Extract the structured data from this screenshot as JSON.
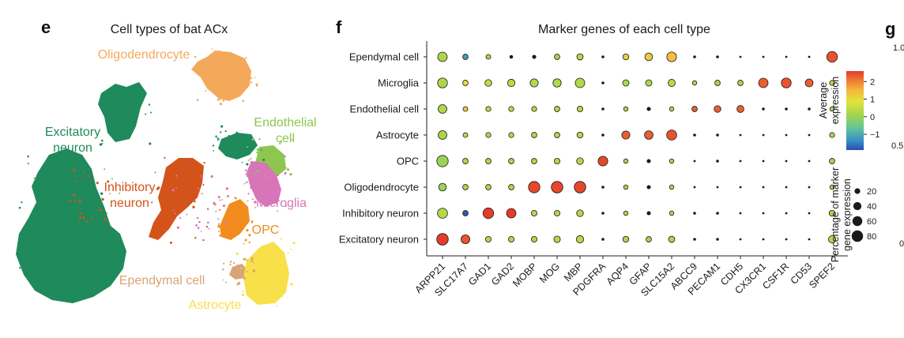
{
  "panels": {
    "e": {
      "letter": "e",
      "title": "Cell types of bat ACx",
      "clusters": [
        {
          "label": "Oligodendrocyte",
          "color": "#f4a95a"
        },
        {
          "label": "Excitatory neuron",
          "color": "#1f8a5b"
        },
        {
          "label": "Endothelial cell",
          "color": "#8dc74f"
        },
        {
          "label": "Inhibitory neuron",
          "color": "#d4531a"
        },
        {
          "label": "Microglia",
          "color": "#d874b8"
        },
        {
          "label": "OPC",
          "color": "#f28c1e"
        },
        {
          "label": "Ependymal cell",
          "color": "#d8a574"
        },
        {
          "label": "Astrocyte",
          "color": "#f8e04a"
        }
      ]
    },
    "f": {
      "letter": "f"
    },
    "g": {
      "letter": "g",
      "ytick_labels": [
        "1.0",
        "0.5",
        "0"
      ]
    }
  },
  "chart_data": {
    "type": "dotplot",
    "title": "Marker genes of each cell type",
    "rows": [
      "Ependymal cell",
      "Microglia",
      "Endothelial cell",
      "Astrocyte",
      "OPC",
      "Oligodendrocyte",
      "Inhibitory neuron",
      "Excitatory neuron"
    ],
    "columns": [
      "ARPP21",
      "SLC17A7",
      "GAD1",
      "GAD2",
      "MOBP",
      "MOG",
      "MBP",
      "PDGFRA",
      "AQP4",
      "GFAP",
      "SLC15A2",
      "ABCC9",
      "PECAM1",
      "CDH5",
      "CX3CR1",
      "CSF1R",
      "CD53",
      "SPEF2"
    ],
    "avg_expression": [
      [
        0.2,
        -1.2,
        0.2,
        0.2,
        0.2,
        0.2,
        0.3,
        0,
        1.2,
        1.2,
        1.4,
        0,
        0,
        0,
        0,
        0,
        0,
        2.4
      ],
      [
        0.2,
        0.9,
        0.5,
        0.4,
        0.3,
        0.3,
        0.3,
        0,
        0.2,
        0.2,
        0.3,
        0.2,
        0.2,
        0.2,
        2.3,
        2.4,
        2.3,
        0.3
      ],
      [
        0.3,
        1.3,
        0.4,
        0.4,
        0.3,
        0.3,
        0.3,
        0,
        0.2,
        0.2,
        0.3,
        2.3,
        2.3,
        2.3,
        0.2,
        0.2,
        0.2,
        0.2
      ],
      [
        0.2,
        0.4,
        0.3,
        0.3,
        0.3,
        0.3,
        0.3,
        0,
        2.3,
        2.3,
        2.4,
        0.2,
        0.2,
        0.2,
        0.2,
        0.2,
        0.2,
        0.2
      ],
      [
        0,
        0.3,
        0.3,
        0.3,
        0.3,
        0.3,
        0.3,
        2.5,
        0.2,
        0.2,
        0.3,
        0.2,
        0.2,
        0.2,
        0.2,
        0.2,
        0.2,
        0.2
      ],
      [
        0,
        0.3,
        0.3,
        0.3,
        2.5,
        2.5,
        2.5,
        0,
        0.2,
        0.2,
        0.2,
        0.2,
        0.2,
        0.2,
        0.2,
        0.2,
        0.2,
        0.2
      ],
      [
        0.3,
        -1.8,
        2.6,
        2.6,
        0.3,
        0.3,
        0.3,
        0,
        0.2,
        0.2,
        0.2,
        0.2,
        0.2,
        0.2,
        0.2,
        0.2,
        0.2,
        0.2
      ],
      [
        2.6,
        2.4,
        0.3,
        0.3,
        0.3,
        0.3,
        0.3,
        0,
        0.2,
        0.2,
        0.2,
        0.2,
        0.2,
        0.2,
        0.2,
        0.2,
        0.2,
        0.3
      ]
    ],
    "pct_expressing": [
      [
        55,
        18,
        14,
        8,
        10,
        18,
        24,
        5,
        22,
        36,
        58,
        5,
        5,
        3,
        3,
        3,
        3,
        70
      ],
      [
        60,
        18,
        28,
        34,
        40,
        42,
        56,
        5,
        25,
        25,
        32,
        12,
        18,
        18,
        55,
        60,
        38,
        16
      ],
      [
        46,
        14,
        16,
        16,
        16,
        18,
        20,
        5,
        12,
        10,
        12,
        18,
        28,
        30,
        5,
        5,
        5,
        12
      ],
      [
        46,
        14,
        16,
        16,
        18,
        18,
        22,
        5,
        40,
        45,
        62,
        5,
        5,
        3,
        3,
        3,
        3,
        16
      ],
      [
        80,
        18,
        18,
        18,
        18,
        20,
        28,
        58,
        12,
        10,
        12,
        3,
        5,
        3,
        3,
        3,
        3,
        18
      ],
      [
        36,
        18,
        18,
        18,
        80,
        82,
        82,
        5,
        12,
        10,
        12,
        3,
        3,
        3,
        3,
        3,
        3,
        12
      ],
      [
        62,
        18,
        70,
        55,
        20,
        20,
        28,
        5,
        12,
        10,
        12,
        5,
        5,
        3,
        3,
        3,
        3,
        22
      ],
      [
        82,
        48,
        20,
        20,
        20,
        26,
        34,
        5,
        22,
        18,
        24,
        5,
        5,
        3,
        3,
        3,
        3,
        32
      ]
    ],
    "colorbar": {
      "title": "Average expression",
      "ticks": [
        2,
        1,
        0,
        -1
      ],
      "tick_labels": [
        "2",
        "1",
        "0",
        "−1"
      ],
      "range": [
        -1.9,
        2.6
      ]
    },
    "size_legend": {
      "title": "Percentage of marker gene expression",
      "values": [
        20,
        40,
        60,
        80
      ],
      "labels": [
        "20",
        "40",
        "60",
        "80"
      ]
    }
  }
}
